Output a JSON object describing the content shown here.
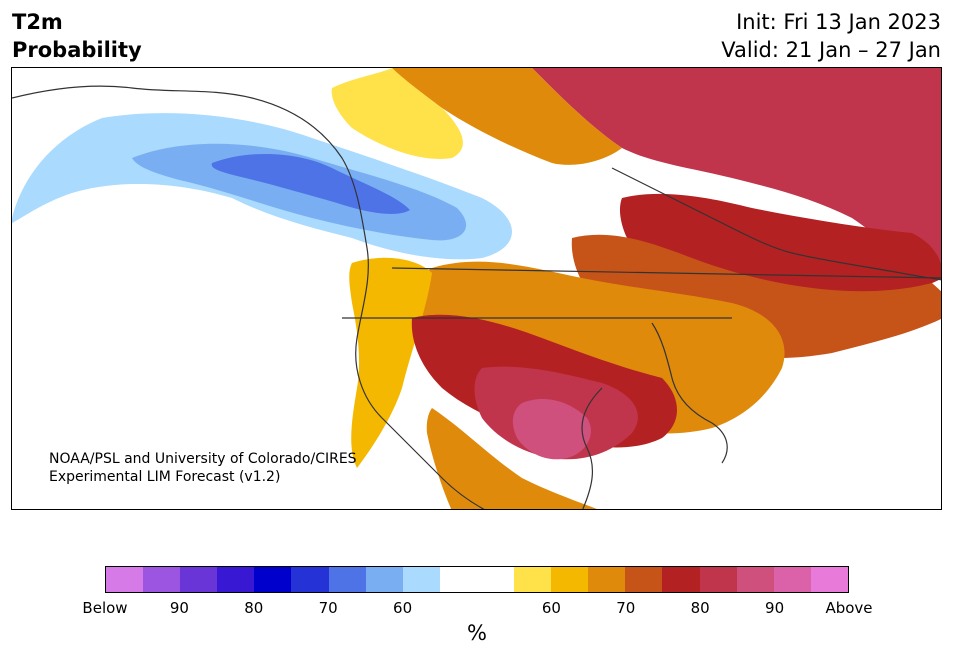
{
  "header": {
    "title_line1": "T2m",
    "title_line2": "Probability",
    "init": "Init: Fri 13 Jan 2023",
    "valid": "Valid: 21 Jan – 27 Jan"
  },
  "credit": {
    "line1": "NOAA/PSL and University of Colorado/CIRES",
    "line2": "Experimental LIM Forecast (v1.2)"
  },
  "colorbar": {
    "colors": [
      "#d67ae8",
      "#9b55e0",
      "#6a35d6",
      "#3918d4",
      "#0000cc",
      "#2533d6",
      "#4e73e6",
      "#79aff2",
      "#aadafd",
      "#ffffff",
      "#ffffff",
      "#ffe14a",
      "#f4b800",
      "#e08a0c",
      "#c65418",
      "#b32122",
      "#c0354c",
      "#cf4f7d",
      "#db62a8",
      "#e87ada"
    ],
    "labels": [
      "Below",
      "90",
      "80",
      "70",
      "60",
      "60",
      "70",
      "80",
      "90",
      "Above"
    ],
    "units": "%"
  },
  "map": {
    "land_color": "#ffffff",
    "border_color": "#333333"
  }
}
